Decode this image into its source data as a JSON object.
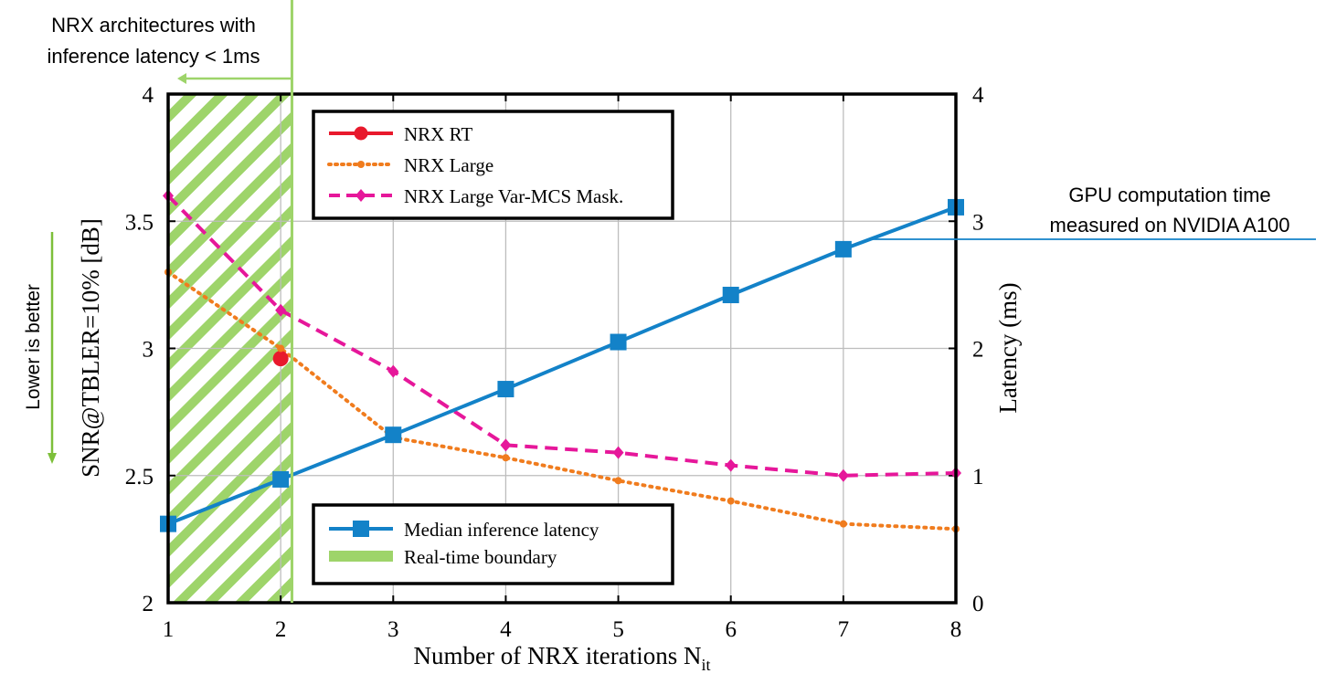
{
  "annotations": {
    "realtime_label_line1": "NRX architectures with",
    "realtime_label_line2": "inference latency < 1ms",
    "gpu_label_line1": "GPU computation time",
    "gpu_label_line2": "measured on NVIDIA A100",
    "lower_is_better": "Lower is better"
  },
  "colors": {
    "nrx_rt": "#e8192c",
    "nrx_large": "#f07c1e",
    "nrx_large_var": "#e6179a",
    "latency": "#1382c8",
    "boundary": "#9ed46a",
    "arrow_green": "#7dbf3a"
  },
  "chart_data": {
    "type": "line",
    "xlabel": "Number of NRX iterations N",
    "xlabel_sub": "it",
    "ylabel": "SNR@TBLER=10% [dB]",
    "ylabel_right": "Latency (ms)",
    "x": [
      1,
      2,
      3,
      4,
      5,
      6,
      7,
      8
    ],
    "x_ticks": [
      "1",
      "2",
      "3",
      "4",
      "5",
      "6",
      "7",
      "8"
    ],
    "xlim": [
      1,
      8
    ],
    "ylim": [
      2,
      4
    ],
    "y_ticks": [
      "2",
      "2.5",
      "3",
      "3.5",
      "4"
    ],
    "y_tick_values": [
      2,
      2.5,
      3,
      3.5,
      4
    ],
    "ylim_right": [
      0,
      4
    ],
    "y_ticks_right": [
      "0",
      "1",
      "2",
      "3",
      "4"
    ],
    "y_tick_values_right": [
      0,
      1,
      2,
      3,
      4
    ],
    "grid": true,
    "realtime_boundary_x": 2.1,
    "series": [
      {
        "name": "NRX RT",
        "axis": "left",
        "x": [
          2
        ],
        "values": [
          2.96
        ],
        "color": "#e8192c",
        "style": "solid",
        "marker": "circle"
      },
      {
        "name": "NRX Large",
        "axis": "left",
        "x": [
          1,
          2,
          3,
          4,
          5,
          6,
          7,
          8
        ],
        "values": [
          3.3,
          3.0,
          2.65,
          2.57,
          2.48,
          2.4,
          2.31,
          2.29
        ],
        "color": "#f07c1e",
        "style": "dotted",
        "marker": "dot"
      },
      {
        "name": "NRX Large Var-MCS Mask.",
        "axis": "left",
        "x": [
          1,
          2,
          3,
          4,
          5,
          6,
          7,
          8
        ],
        "values": [
          3.6,
          3.15,
          2.91,
          2.62,
          2.59,
          2.54,
          2.5,
          2.51
        ],
        "color": "#e6179a",
        "style": "dashed",
        "marker": "diamond"
      },
      {
        "name": "Median inference latency",
        "axis": "right",
        "x": [
          1,
          2,
          3,
          4,
          5,
          6,
          7,
          8
        ],
        "values": [
          0.62,
          0.97,
          1.32,
          1.68,
          2.05,
          2.42,
          2.78,
          3.11
        ],
        "color": "#1382c8",
        "style": "solid",
        "marker": "square"
      }
    ],
    "legend_top": [
      "NRX RT",
      "NRX Large",
      "NRX Large Var-MCS Mask."
    ],
    "legend_bottom": [
      "Median inference latency",
      "Real-time boundary"
    ]
  }
}
